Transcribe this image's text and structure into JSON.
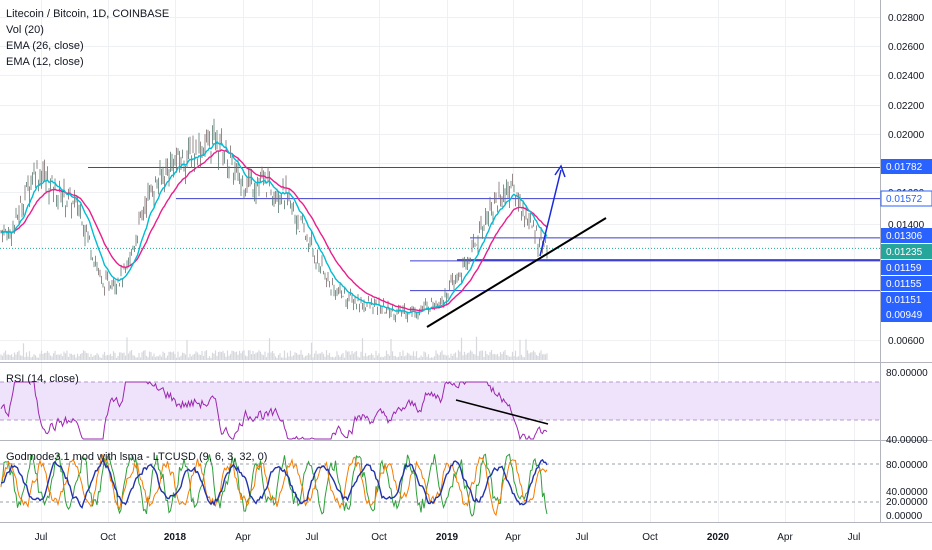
{
  "legend": {
    "main": [
      "Litecoin / Bitcoin, 1D, COINBASE",
      "Vol (20)",
      "EMA (26, close)",
      "EMA (12, close)"
    ],
    "rsi": "RSI (14, close)",
    "godmode": "Godmode3.1 mod with lsma - LTCUSD (9, 6, 3, 32, 0)"
  },
  "colors": {
    "axis_label_bg": "#2962ff",
    "current_price_bg": "#26a69a",
    "ema26": "#e91e8c",
    "ema12": "#00bcd4",
    "rsi_line": "#9c27b0",
    "rsi_band": "#efe3fb",
    "level_line": "#3f3fd0"
  },
  "price_axis": {
    "ticks": [
      "0.02800",
      "0.02600",
      "0.02400",
      "0.02200",
      "0.02000",
      "0.01800",
      "0.01600",
      "0.01400",
      "0.00600"
    ],
    "labels": [
      {
        "text": "0.01782",
        "kind": "level"
      },
      {
        "text": "0.01572",
        "kind": "level"
      },
      {
        "text": "0.01306",
        "kind": "level"
      },
      {
        "text": "0.01235",
        "kind": "current"
      },
      {
        "text": "0.01159",
        "kind": "level"
      },
      {
        "text": "0.01155",
        "kind": "level"
      },
      {
        "text": "0.01151",
        "kind": "level"
      },
      {
        "text": "0.00949",
        "kind": "level"
      }
    ]
  },
  "rsi_axis": {
    "ticks": [
      "80.00000",
      "40.00000"
    ]
  },
  "godmode_axis": {
    "ticks": [
      "80.00000",
      "40.00000",
      "20.00000",
      "0.00000"
    ]
  },
  "time_axis": {
    "ticks": [
      "Jul",
      "Oct",
      "2018",
      "Apr",
      "Jul",
      "Oct",
      "2019",
      "Apr",
      "Jul",
      "Oct",
      "2020",
      "Apr",
      "Jul"
    ]
  },
  "chart_data": {
    "type": "candlestick",
    "symbol": "Litecoin / Bitcoin",
    "interval": "1D",
    "exchange": "COINBASE",
    "indicators": [
      "Vol (20)",
      "EMA (26, close)",
      "EMA (12, close)",
      "RSI (14, close)",
      "Godmode3.1 mod with lsma - LTCUSD (9, 6, 3, 32, 0)"
    ],
    "horizontal_levels": [
      0.01782,
      0.01572,
      0.01306,
      0.01159,
      0.01155,
      0.01151,
      0.00949
    ],
    "last_price": 0.01235,
    "close_path": [
      {
        "t": "2017-06",
        "v": 0.0135
      },
      {
        "t": "2017-07",
        "v": 0.0178
      },
      {
        "t": "2017-08",
        "v": 0.0162
      },
      {
        "t": "2017-09",
        "v": 0.015
      },
      {
        "t": "2017-10",
        "v": 0.0098
      },
      {
        "t": "2017-11",
        "v": 0.0106
      },
      {
        "t": "2017-12",
        "v": 0.016
      },
      {
        "t": "2018-01",
        "v": 0.018
      },
      {
        "t": "2018-02",
        "v": 0.0188
      },
      {
        "t": "2018-03",
        "v": 0.0198
      },
      {
        "t": "2018-04",
        "v": 0.017
      },
      {
        "t": "2018-05",
        "v": 0.0168
      },
      {
        "t": "2018-06",
        "v": 0.016
      },
      {
        "t": "2018-07",
        "v": 0.013
      },
      {
        "t": "2018-08",
        "v": 0.0098
      },
      {
        "t": "2018-09",
        "v": 0.0088
      },
      {
        "t": "2018-10",
        "v": 0.0084
      },
      {
        "t": "2018-11",
        "v": 0.008
      },
      {
        "t": "2018-12",
        "v": 0.0082
      },
      {
        "t": "2019-01",
        "v": 0.009
      },
      {
        "t": "2019-02",
        "v": 0.0112
      },
      {
        "t": "2019-03",
        "v": 0.015
      },
      {
        "t": "2019-04",
        "v": 0.0165
      },
      {
        "t": "2019-05",
        "v": 0.0135
      },
      {
        "t": "2019-05-20",
        "v": 0.01235
      }
    ]
  }
}
